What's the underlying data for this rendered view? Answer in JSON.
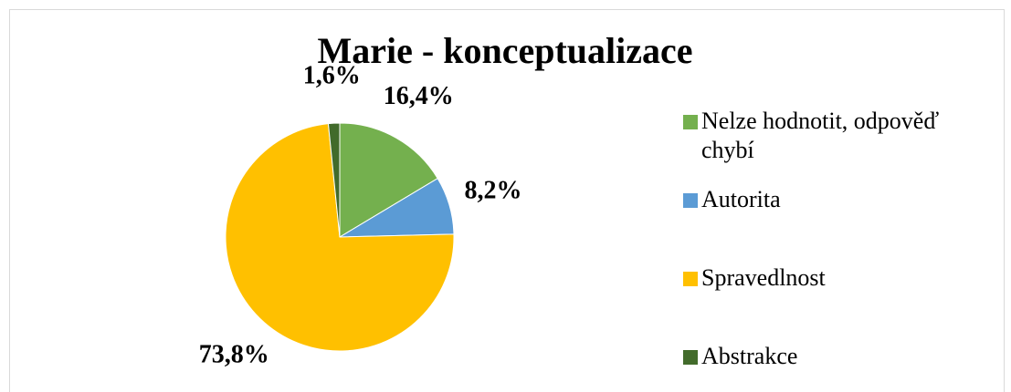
{
  "chart_data": {
    "type": "pie",
    "title": "Marie - konceptualizace",
    "categories": [
      "Nelze hodnotit, odpověď chybí",
      "Autorita",
      "Spravedlnost",
      "Abstrakce"
    ],
    "values": [
      16.4,
      8.2,
      73.8,
      1.6
    ],
    "value_labels": [
      "16,4%",
      "8,2%",
      "73,8%",
      "1,6%"
    ],
    "colors": [
      "#74b04e",
      "#5b9bd5",
      "#ffc000",
      "#426b2b"
    ],
    "legend": "right"
  }
}
